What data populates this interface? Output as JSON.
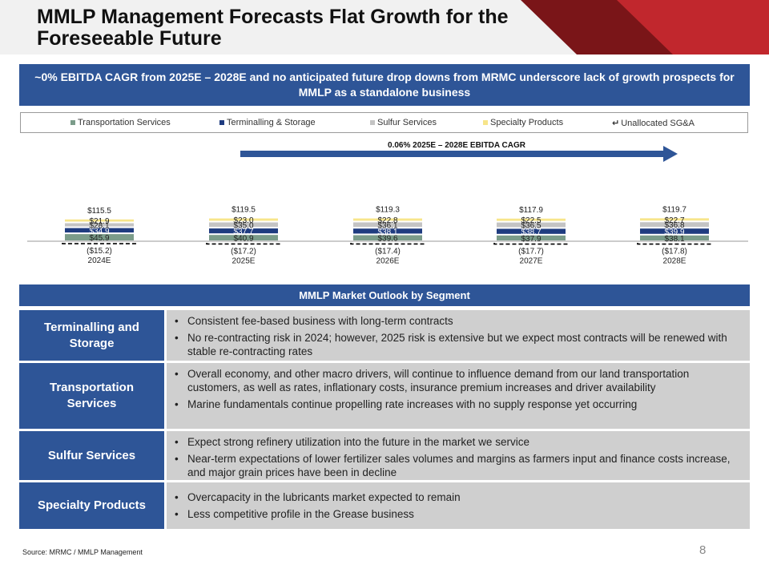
{
  "header": {
    "title": "MMLP Management Forecasts Flat Growth for the Foreseeable Future",
    "colors": {
      "red_dark": "#7a1518",
      "red": "#c1272d",
      "bar_bg": "#f1f1f1"
    }
  },
  "subtitle": "~0% EBITDA CAGR from 2025E – 2028E and no anticipated future drop downs from MRMC underscore lack of growth prospects for MMLP as a standalone business",
  "chart_data": {
    "type": "bar",
    "stacked": true,
    "categories": [
      "2024E",
      "2025E",
      "2026E",
      "2027E",
      "2028E"
    ],
    "series": [
      {
        "name": "Transportation Services",
        "color": "#7b9c8a",
        "values": [
          45.9,
          40.9,
          39.6,
          37.9,
          38.1
        ],
        "labels": [
          "$45.9",
          "$40.9",
          "$39.6",
          "$37.9",
          "$38.1"
        ]
      },
      {
        "name": "Terminalling & Storage",
        "color": "#1f3c80",
        "values": [
          34.9,
          37.7,
          38.1,
          38.7,
          39.9
        ],
        "labels": [
          "$34.9",
          "$37.7",
          "$38.1",
          "$38.7",
          "$39.9"
        ]
      },
      {
        "name": "Sulfur Services",
        "color": "#c4c4c4",
        "values": [
          28.1,
          35.0,
          36.1,
          36.5,
          36.8
        ],
        "labels": [
          "$28.1",
          "$35.0",
          "$36.1",
          "$36.5",
          "$36.8"
        ]
      },
      {
        "name": "Specialty Products",
        "color": "#f7e58a",
        "values": [
          21.9,
          23.0,
          22.8,
          22.5,
          22.7
        ],
        "labels": [
          "$21.9",
          "$23.0",
          "$22.8",
          "$22.5",
          "$22.7"
        ]
      },
      {
        "name": "Unallocated SG&A",
        "color": "#000000",
        "values": [
          -15.2,
          -17.2,
          -17.4,
          -17.7,
          -17.8
        ],
        "labels": [
          "($15.2)",
          "($17.2)",
          "($17.4)",
          "($17.7)",
          "($17.8)"
        ]
      }
    ],
    "totals": [
      115.5,
      119.5,
      119.3,
      117.9,
      119.7
    ],
    "total_labels": [
      "$115.5",
      "$119.5",
      "$119.3",
      "$117.9",
      "$119.7"
    ],
    "annotation": "0.06% 2025E – 2028E EBITDA CAGR",
    "arrow_color": "#2e5597",
    "legend_labels": [
      "Transportation Services",
      "Terminalling & Storage",
      "Sulfur Services",
      "Specialty Products",
      "Unallocated SG&A"
    ],
    "legend_icons": [
      "square-swatch",
      "square-swatch",
      "square-swatch",
      "square-swatch",
      "return-arrow-icon"
    ],
    "title": "",
    "xlabel": "",
    "ylabel": "",
    "legend_position": "top"
  },
  "outlook": {
    "heading": "MMLP Market Outlook by Segment",
    "segments": [
      {
        "name": "Terminalling and Storage",
        "bullets": [
          "Consistent fee-based business with long-term contracts",
          "No re-contracting risk in 2024; however, 2025 risk is extensive but we expect most contracts will be renewed with stable re-contracting rates"
        ]
      },
      {
        "name": "Transportation Services",
        "bullets": [
          "Overall economy, and other macro drivers, will continue to influence demand from our land transportation customers, as well as rates, inflationary costs, insurance premium increases and driver availability",
          "Marine fundamentals continue propelling rate increases with no supply response yet occurring"
        ]
      },
      {
        "name": "Sulfur Services",
        "bullets": [
          "Expect strong refinery utilization into the future in the market we service",
          "Near-term expectations of lower fertilizer sales volumes and margins as farmers input and finance costs increase, and major grain prices have been in decline"
        ]
      },
      {
        "name": "Specialty Products",
        "bullets": [
          "Overcapacity in the lubricants market expected to remain",
          "Less competitive profile in the Grease business"
        ]
      }
    ]
  },
  "footer": {
    "source": "Source: MRMC / MMLP Management",
    "page_number": "8"
  }
}
